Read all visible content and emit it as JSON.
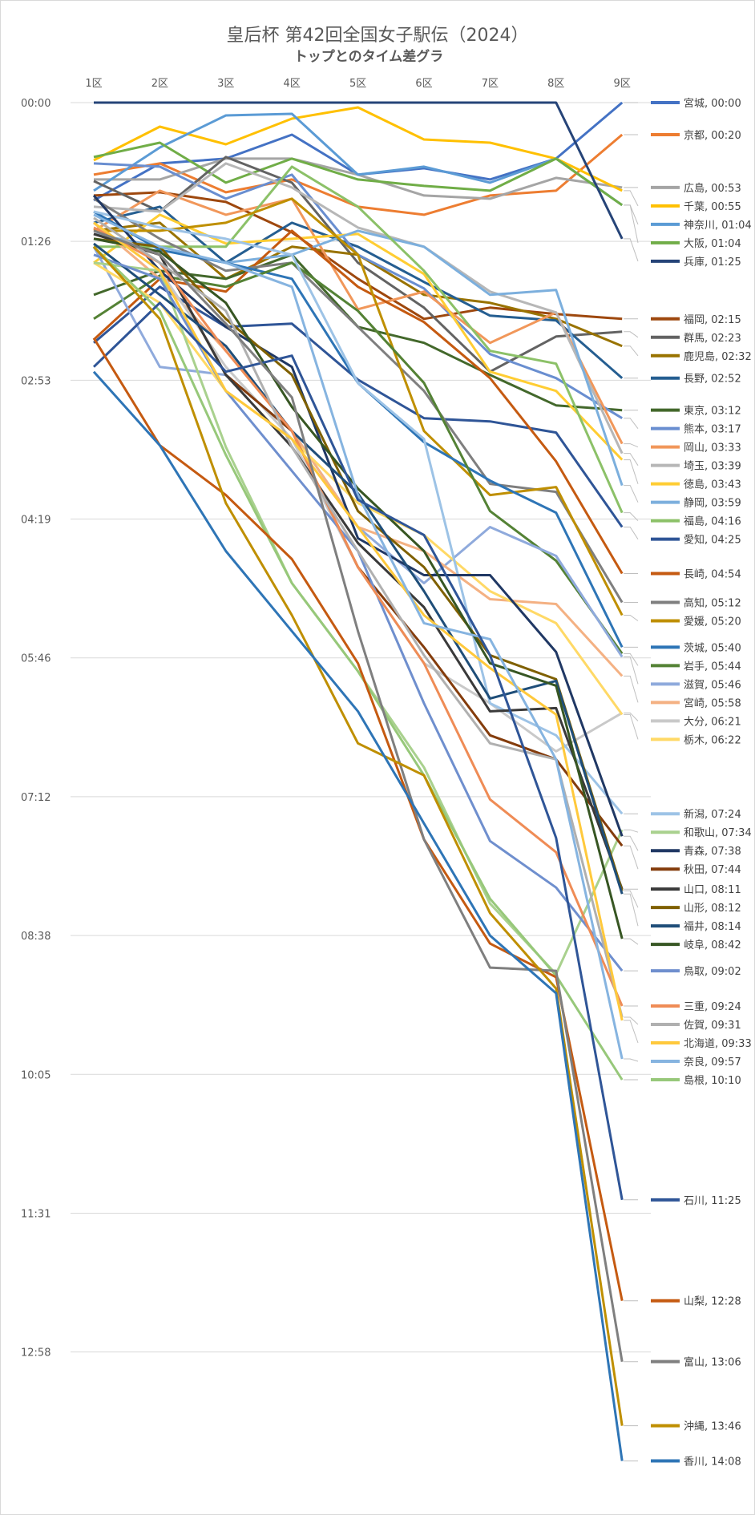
{
  "chart_data": {
    "type": "line",
    "title": "皇后杯 第42回全国女子駅伝（2024）",
    "subtitle": "トップとのタイム差グラ",
    "categories": [
      "1区",
      "2区",
      "3区",
      "4区",
      "5区",
      "6区",
      "7区",
      "8区",
      "9区"
    ],
    "y_ticks": [
      "00:00",
      "01:26",
      "02:53",
      "04:19",
      "05:46",
      "07:12",
      "08:38",
      "10:05",
      "11:31",
      "12:58"
    ],
    "ylim_seconds": [
      0,
      870
    ],
    "y_inverted": true,
    "grid": true,
    "legend": "right, end-of-line labels",
    "series": [
      {
        "name": "宮城",
        "label": "宮城, 00:00",
        "color": "#4472c4",
        "values": [
          61,
          38,
          35,
          20,
          45,
          41,
          48,
          35,
          0
        ]
      },
      {
        "name": "京都",
        "label": "京都, 00:20",
        "color": "#ed7d31",
        "values": [
          45,
          38,
          56,
          48,
          65,
          70,
          58,
          55,
          20
        ]
      },
      {
        "name": "広島",
        "label": "広島, 00:53",
        "color": "#a5a5a5",
        "values": [
          48,
          48,
          35,
          35,
          45,
          58,
          60,
          47,
          53
        ]
      },
      {
        "name": "千葉",
        "label": "千葉, 00:55",
        "color": "#ffc000",
        "values": [
          36,
          15,
          26,
          10,
          3,
          23,
          25,
          35,
          55
        ]
      },
      {
        "name": "神奈川",
        "label": "神奈川, 01:04",
        "color": "#5b9bd5",
        "values": [
          55,
          28,
          8,
          7,
          45,
          40,
          50,
          35,
          64
        ]
      },
      {
        "name": "大阪",
        "label": "大阪, 01:04",
        "color": "#70ad47",
        "values": [
          34,
          25,
          50,
          35,
          48,
          52,
          55,
          35,
          64
        ]
      },
      {
        "name": "兵庫",
        "label": "兵庫, 01:25",
        "color": "#264478",
        "values": [
          0,
          0,
          0,
          0,
          0,
          0,
          0,
          0,
          85
        ]
      },
      {
        "name": "福岡",
        "label": "福岡, 02:15",
        "color": "#9e480e",
        "values": [
          58,
          56,
          62,
          81,
          110,
          135,
          128,
          132,
          135
        ]
      },
      {
        "name": "群馬",
        "label": "群馬, 02:23",
        "color": "#636363",
        "values": [
          49,
          68,
          34,
          50,
          100,
          128,
          168,
          146,
          143
        ]
      },
      {
        "name": "鹿児島",
        "label": "鹿児島, 02:32",
        "color": "#997300",
        "values": [
          80,
          75,
          110,
          90,
          95,
          120,
          125,
          135,
          152
        ]
      },
      {
        "name": "長野",
        "label": "長野, 02:52",
        "color": "#255e91",
        "values": [
          75,
          65,
          100,
          75,
          90,
          112,
          133,
          136,
          172
        ]
      },
      {
        "name": "東京",
        "label": "東京, 03:12",
        "color": "#43682b",
        "values": [
          120,
          105,
          110,
          95,
          140,
          150,
          170,
          189,
          192
        ]
      },
      {
        "name": "熊本",
        "label": "熊本, 03:17",
        "color": "#698ed0",
        "values": [
          38,
          40,
          60,
          45,
          95,
          116,
          157,
          172,
          197
        ]
      },
      {
        "name": "岡山",
        "label": "岡山, 03:33",
        "color": "#f1975a",
        "values": [
          80,
          55,
          70,
          60,
          129,
          118,
          150,
          131,
          213
        ]
      },
      {
        "name": "埼玉",
        "label": "埼玉, 03:39",
        "color": "#b7b7b7",
        "values": [
          65,
          68,
          38,
          53,
          78,
          90,
          118,
          131,
          219
        ]
      },
      {
        "name": "徳島",
        "label": "徳島, 03:43",
        "color": "#ffcd33",
        "values": [
          100,
          70,
          88,
          85,
          82,
          107,
          168,
          180,
          223
        ]
      },
      {
        "name": "静岡",
        "label": "静岡, 03:59",
        "color": "#7cafdd",
        "values": [
          82,
          90,
          100,
          95,
          80,
          90,
          120,
          117,
          239
        ]
      },
      {
        "name": "福島",
        "label": "福島, 04:16",
        "color": "#8cc168",
        "values": [
          90,
          90,
          90,
          40,
          65,
          105,
          155,
          163,
          256
        ]
      },
      {
        "name": "愛知",
        "label": "愛知, 04:25",
        "color": "#2f5597",
        "values": [
          150,
          115,
          140,
          138,
          173,
          197,
          199,
          206,
          265
        ]
      },
      {
        "name": "長崎",
        "label": "長崎, 04:54",
        "color": "#c55a11",
        "values": [
          148,
          110,
          118,
          80,
          115,
          137,
          172,
          224,
          294
        ]
      },
      {
        "name": "高知",
        "label": "高知, 05:12",
        "color": "#7f7f7f",
        "values": [
          60,
          85,
          105,
          100,
          140,
          180,
          238,
          243,
          312
        ]
      },
      {
        "name": "愛媛",
        "label": "愛媛, 05:20",
        "color": "#bf8f00",
        "values": [
          80,
          80,
          75,
          60,
          95,
          205,
          245,
          240,
          320
        ]
      },
      {
        "name": "茨城",
        "label": "茨城, 05:40",
        "color": "#2e75b6",
        "values": [
          68,
          92,
          100,
          110,
          175,
          212,
          236,
          256,
          340
        ]
      },
      {
        "name": "岩手",
        "label": "岩手, 05:44",
        "color": "#548235",
        "values": [
          135,
          108,
          115,
          100,
          130,
          175,
          255,
          286,
          344
        ]
      },
      {
        "name": "滋賀",
        "label": "滋賀, 05:46",
        "color": "#8faadc",
        "values": [
          90,
          165,
          170,
          205,
          265,
          300,
          265,
          283,
          346
        ]
      },
      {
        "name": "宮崎",
        "label": "宮崎, 05:58",
        "color": "#f4b183",
        "values": [
          75,
          110,
          155,
          205,
          265,
          280,
          310,
          313,
          358
        ]
      },
      {
        "name": "大分",
        "label": "大分, 06:21",
        "color": "#c9c9c9",
        "values": [
          75,
          105,
          165,
          210,
          290,
          350,
          375,
          405,
          381
        ]
      },
      {
        "name": "栃木",
        "label": "栃木, 06:22",
        "color": "#ffd966",
        "values": [
          100,
          125,
          180,
          210,
          250,
          270,
          305,
          325,
          382
        ]
      },
      {
        "name": "新潟",
        "label": "新潟, 07:24",
        "color": "#9dc3e6",
        "values": [
          68,
          78,
          85,
          95,
          175,
          210,
          375,
          395,
          444
        ]
      },
      {
        "name": "和歌山",
        "label": "和歌山, 07:34",
        "color": "#a9d18e",
        "values": [
          100,
          105,
          215,
          300,
          355,
          415,
          500,
          544,
          454
        ]
      },
      {
        "name": "青森",
        "label": "青森, 07:38",
        "color": "#203864",
        "values": [
          58,
          105,
          140,
          165,
          272,
          295,
          295,
          343,
          458
        ]
      },
      {
        "name": "秋田",
        "label": "秋田, 07:44",
        "color": "#843c0c",
        "values": [
          82,
          95,
          170,
          205,
          290,
          340,
          395,
          410,
          464
        ]
      },
      {
        "name": "山口",
        "label": "山口, 08:11",
        "color": "#3a3a3a",
        "values": [
          82,
          95,
          170,
          215,
          275,
          315,
          380,
          378,
          491
        ]
      },
      {
        "name": "山形",
        "label": "山形, 08:12",
        "color": "#7f6000",
        "values": [
          85,
          90,
          135,
          170,
          255,
          290,
          345,
          360,
          492
        ]
      },
      {
        "name": "福井",
        "label": "福井, 08:14",
        "color": "#1f4e79",
        "values": [
          88,
          120,
          152,
          205,
          244,
          305,
          372,
          361,
          494
        ]
      },
      {
        "name": "岐阜",
        "label": "岐阜, 08:42",
        "color": "#375623",
        "values": [
          85,
          93,
          125,
          190,
          241,
          280,
          350,
          364,
          522
        ]
      },
      {
        "name": "鳥取",
        "label": "鳥取, 09:02",
        "color": "#6f8fce",
        "values": [
          95,
          110,
          180,
          230,
          280,
          375,
          461,
          490,
          542
        ]
      },
      {
        "name": "三重",
        "label": "三重, 09:24",
        "color": "#ef8c56",
        "values": [
          78,
          100,
          155,
          205,
          290,
          350,
          435,
          468,
          564
        ]
      },
      {
        "name": "佐賀",
        "label": "佐賀, 09:31",
        "color": "#b0b0b0",
        "values": [
          72,
          100,
          130,
          215,
          280,
          345,
          400,
          410,
          571
        ]
      },
      {
        "name": "北海道",
        "label": "北海道, 09:33",
        "color": "#ffc93c",
        "values": [
          75,
          105,
          180,
          210,
          265,
          320,
          353,
          382,
          573
        ]
      },
      {
        "name": "奈良",
        "label": "奈良, 09:57",
        "color": "#86b4e0",
        "values": [
          70,
          90,
          100,
          115,
          245,
          325,
          335,
          410,
          597
        ]
      },
      {
        "name": "島根",
        "label": "島根, 10:10",
        "color": "#97c87a",
        "values": [
          90,
          130,
          220,
          300,
          355,
          420,
          497,
          545,
          610
        ]
      },
      {
        "name": "石川",
        "label": "石川, 11:25",
        "color": "#2f5597",
        "values": [
          165,
          125,
          168,
          158,
          248,
          270,
          345,
          459,
          685
        ]
      },
      {
        "name": "山梨",
        "label": "山梨, 12:28",
        "color": "#c55a11",
        "values": [
          147,
          214,
          245,
          285,
          350,
          460,
          525,
          546,
          748
        ]
      },
      {
        "name": "富山",
        "label": "富山, 13:06",
        "color": "#7f7f7f",
        "values": [
          80,
          95,
          138,
          184,
          330,
          460,
          540,
          542,
          786
        ]
      },
      {
        "name": "沖縄",
        "label": "沖縄, 13:46",
        "color": "#bf8f00",
        "values": [
          90,
          135,
          250,
          320,
          400,
          420,
          506,
          553,
          826
        ]
      },
      {
        "name": "香川",
        "label": "香川, 14:08",
        "color": "#2e75b6",
        "values": [
          168,
          214,
          280,
          330,
          380,
          450,
          520,
          556,
          848
        ]
      }
    ]
  }
}
